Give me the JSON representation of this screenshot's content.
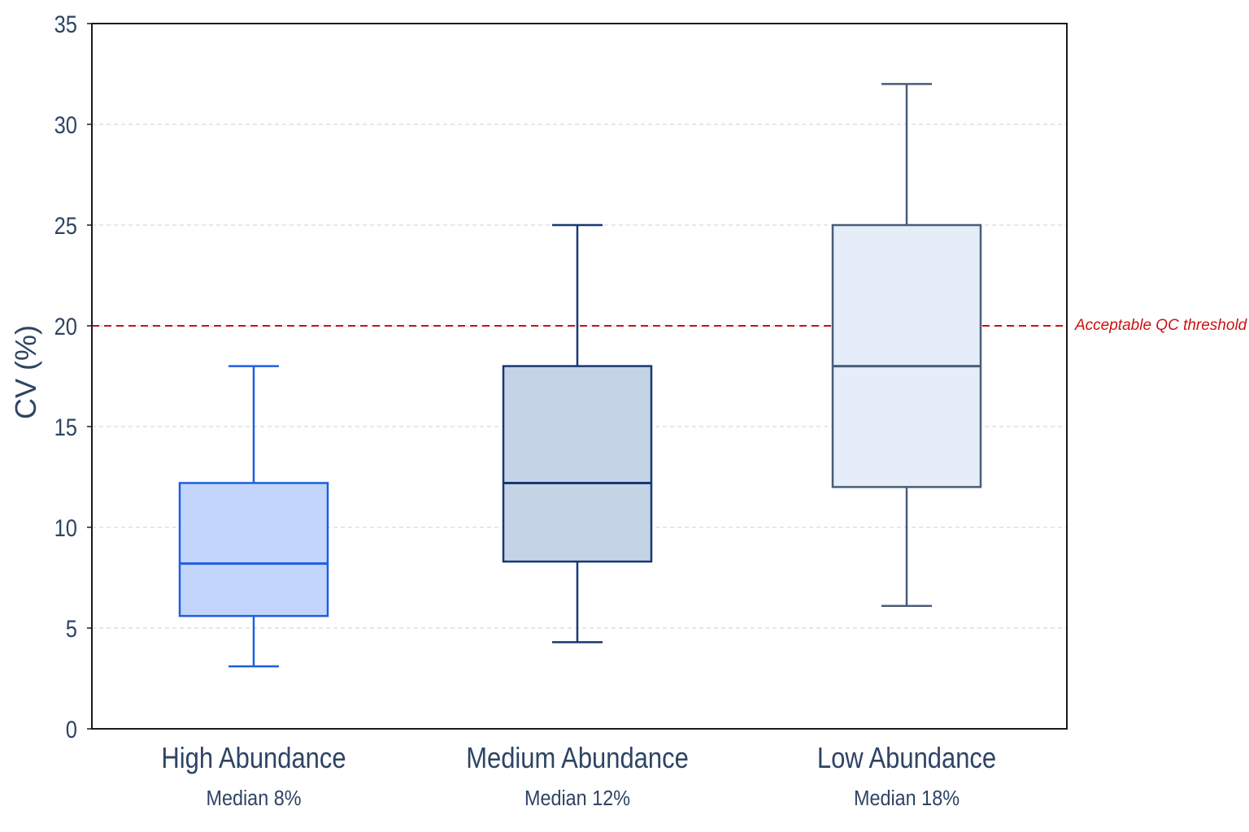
{
  "chart_data": {
    "type": "box",
    "ylabel": "CV (%)",
    "ylim": [
      0,
      35
    ],
    "yticks": [
      0,
      5,
      10,
      15,
      20,
      25,
      30,
      35
    ],
    "grid": true,
    "categories": [
      {
        "label": "High Abundance",
        "sublabel": "Median 8%",
        "min": 3.1,
        "q1": 5.6,
        "median": 8.2,
        "q3": 12.2,
        "max": 18,
        "fill": "#c3d5fb",
        "stroke": "#1d5fe0"
      },
      {
        "label": "Medium Abundance",
        "sublabel": "Median 12%",
        "min": 4.3,
        "q1": 8.3,
        "median": 12.2,
        "q3": 18,
        "max": 25,
        "fill": "#c5d3e7",
        "stroke": "#173873"
      },
      {
        "label": "Low Abundance",
        "sublabel": "Median 18%",
        "min": 6.1,
        "q1": 12,
        "median": 18,
        "q3": 25,
        "max": 32,
        "fill": "#e4edf8",
        "stroke": "#4a5d78"
      }
    ],
    "reference_line": {
      "value": 20,
      "label": "Acceptable QC threshold",
      "color": "#cc1111"
    }
  }
}
